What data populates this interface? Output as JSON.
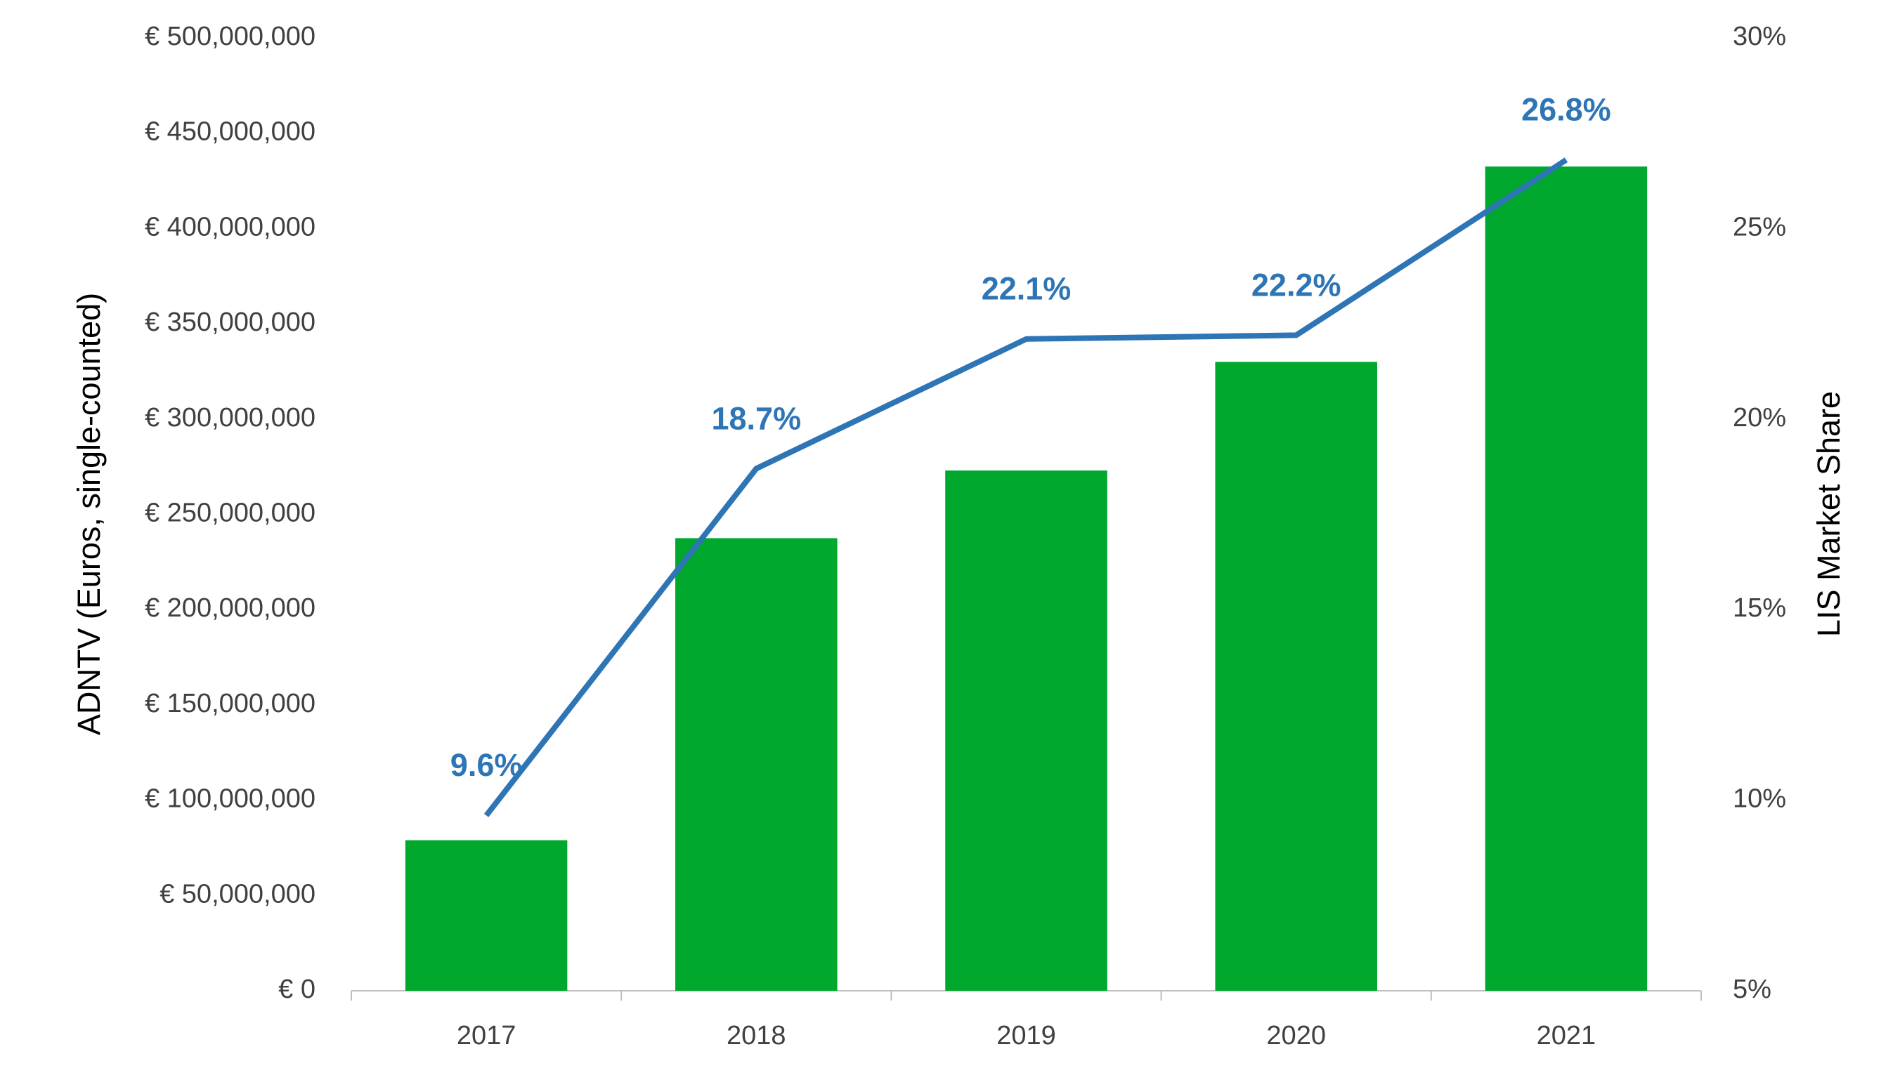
{
  "chart_data": {
    "type": "combo",
    "y_label": "ADNTV (Euros, single-counted)",
    "y2_label": "LIS Market Share",
    "categories": [
      "2017",
      "2018",
      "2019",
      "2020",
      "2021"
    ],
    "series": [
      {
        "type": "bar",
        "color": "#00a82d",
        "values": [
          79000000,
          237500000,
          273000000,
          330000000,
          432500000
        ]
      },
      {
        "type": "line",
        "axis": "y2",
        "color": "#2e75b6",
        "values": [
          9.6,
          18.7,
          22.1,
          22.2,
          26.8
        ],
        "value_labels": [
          "9.6%",
          "18.7%",
          "22.1%",
          "22.2%",
          "26.8%"
        ]
      }
    ],
    "ylim": [
      0,
      500000000
    ],
    "yticks": [
      {
        "value": 0,
        "label": "€ 0"
      },
      {
        "value": 50000000,
        "label": "€ 50,000,000"
      },
      {
        "value": 100000000,
        "label": "€ 100,000,000"
      },
      {
        "value": 150000000,
        "label": "€ 150,000,000"
      },
      {
        "value": 200000000,
        "label": "€ 200,000,000"
      },
      {
        "value": 250000000,
        "label": "€ 250,000,000"
      },
      {
        "value": 300000000,
        "label": "€ 300,000,000"
      },
      {
        "value": 350000000,
        "label": "€ 350,000,000"
      },
      {
        "value": 400000000,
        "label": "€ 400,000,000"
      },
      {
        "value": 450000000,
        "label": "€ 450,000,000"
      },
      {
        "value": 500000000,
        "label": "€ 500,000,000"
      }
    ],
    "y2lim": [
      5,
      30
    ],
    "y2ticks": [
      {
        "value": 5,
        "label": "5%"
      },
      {
        "value": 10,
        "label": "10%"
      },
      {
        "value": 15,
        "label": "15%"
      },
      {
        "value": 20,
        "label": "20%"
      },
      {
        "value": 25,
        "label": "25%"
      },
      {
        "value": 30,
        "label": "30%"
      }
    ]
  }
}
